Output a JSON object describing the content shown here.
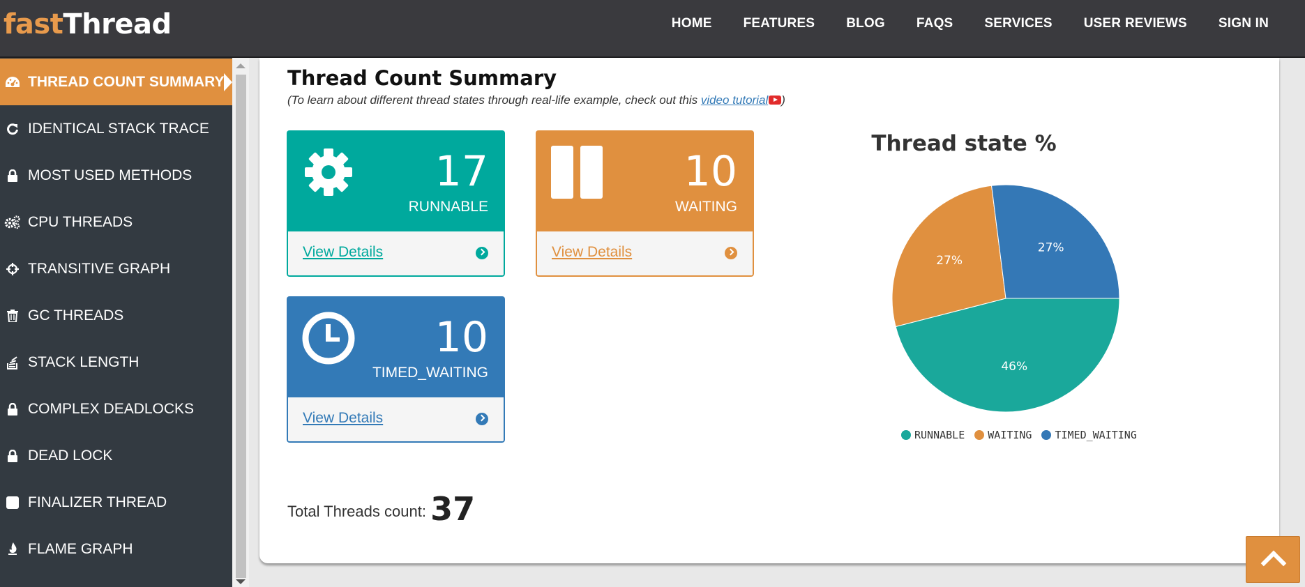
{
  "logo": {
    "part1": "fast",
    "part2": "Thread"
  },
  "nav": [
    "HOME",
    "FEATURES",
    "BLOG",
    "FAQS",
    "SERVICES",
    "USER REVIEWS",
    "SIGN IN"
  ],
  "sidebar": {
    "items": [
      {
        "label": "THREAD COUNT SUMMARY",
        "icon": "dashboard-icon",
        "active": true
      },
      {
        "label": "IDENTICAL STACK TRACE",
        "icon": "refresh-icon"
      },
      {
        "label": "MOST USED METHODS",
        "icon": "lock-icon"
      },
      {
        "label": "CPU THREADS",
        "icon": "gears-icon"
      },
      {
        "label": "TRANSITIVE GRAPH",
        "icon": "crosshairs-icon"
      },
      {
        "label": "GC THREADS",
        "icon": "trash-icon"
      },
      {
        "label": "STACK LENGTH",
        "icon": "stack-icon"
      },
      {
        "label": "COMPLEX DEADLOCKS",
        "icon": "lock-icon"
      },
      {
        "label": "DEAD LOCK",
        "icon": "lock-icon"
      },
      {
        "label": "FINALIZER THREAD",
        "icon": "square-icon"
      },
      {
        "label": "FLAME GRAPH",
        "icon": "flame-icon"
      }
    ]
  },
  "main": {
    "title": "Thread Count Summary",
    "subtitle_pre": "(To learn about different thread states through real-life example, check out this ",
    "subtitle_link": "video tutorial",
    "subtitle_post": ")",
    "cards": [
      {
        "count": "17",
        "state": "RUNNABLE",
        "link": "View Details",
        "color": "#00a99d",
        "icon": "gear-icon"
      },
      {
        "count": "10",
        "state": "WAITING",
        "link": "View Details",
        "color": "#e0903f",
        "icon": "pause-icon"
      },
      {
        "count": "10",
        "state": "TIMED_WAITING",
        "link": "View Details",
        "color": "#337ab7",
        "icon": "clock-icon"
      }
    ],
    "total_label": "Total Threads count:",
    "total_value": "37"
  },
  "chart_data": {
    "type": "pie",
    "title": "Thread state %",
    "categories": [
      "RUNNABLE",
      "WAITING",
      "TIMED_WAITING"
    ],
    "values": [
      46,
      27,
      27
    ],
    "labels": [
      "46%",
      "27%",
      "27%"
    ],
    "colors": [
      "#1aa89b",
      "#e0903f",
      "#3478b6"
    ],
    "legend": "bottom"
  }
}
